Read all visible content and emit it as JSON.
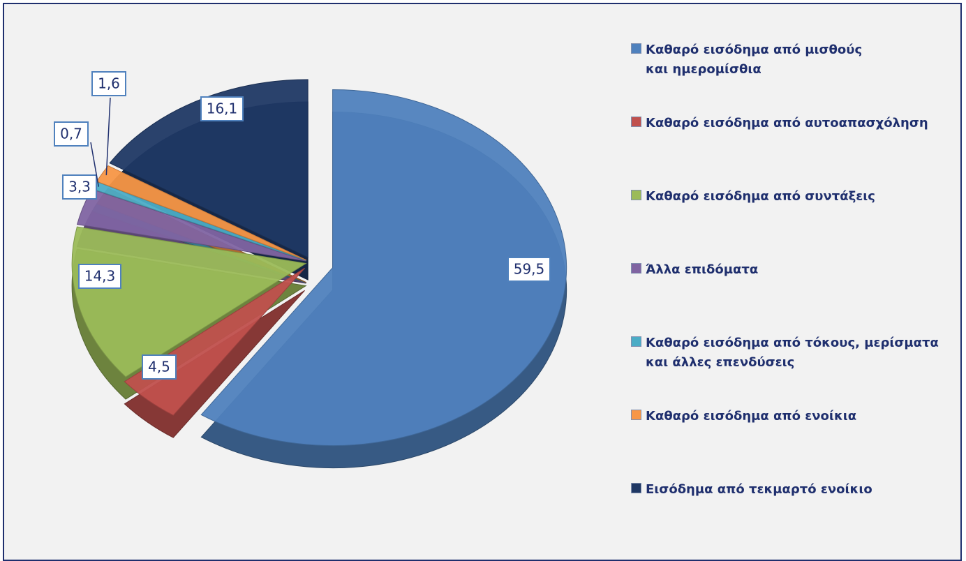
{
  "chart_data": {
    "type": "pie",
    "categories": [
      "Καθαρό εισόδημα από μισθούς και ημερομίσθια",
      "Καθαρό εισόδημα από αυτοαπασχόληση",
      "Καθαρό εισόδημα από συντάξεις",
      "Άλλα επιδόματα",
      "Καθαρό εισόδημα από τόκους, μερίσματα και άλλες επενδύσεις",
      "Καθαρό εισόδημα από ενοίκια",
      "Εισόδημα από τεκμαρτό ενοίκιο"
    ],
    "values": [
      59.5,
      4.5,
      14.3,
      3.3,
      0.7,
      1.6,
      16.1
    ],
    "value_labels": [
      "59,5",
      "4,5",
      "14,3",
      "3,3",
      "0,7",
      "1,6",
      "16,1"
    ],
    "colors": [
      "#4f81bd",
      "#c0504d",
      "#9bbb59",
      "#8064a2",
      "#4bacc6",
      "#f79646",
      "#1f3864"
    ],
    "legend": "right"
  }
}
